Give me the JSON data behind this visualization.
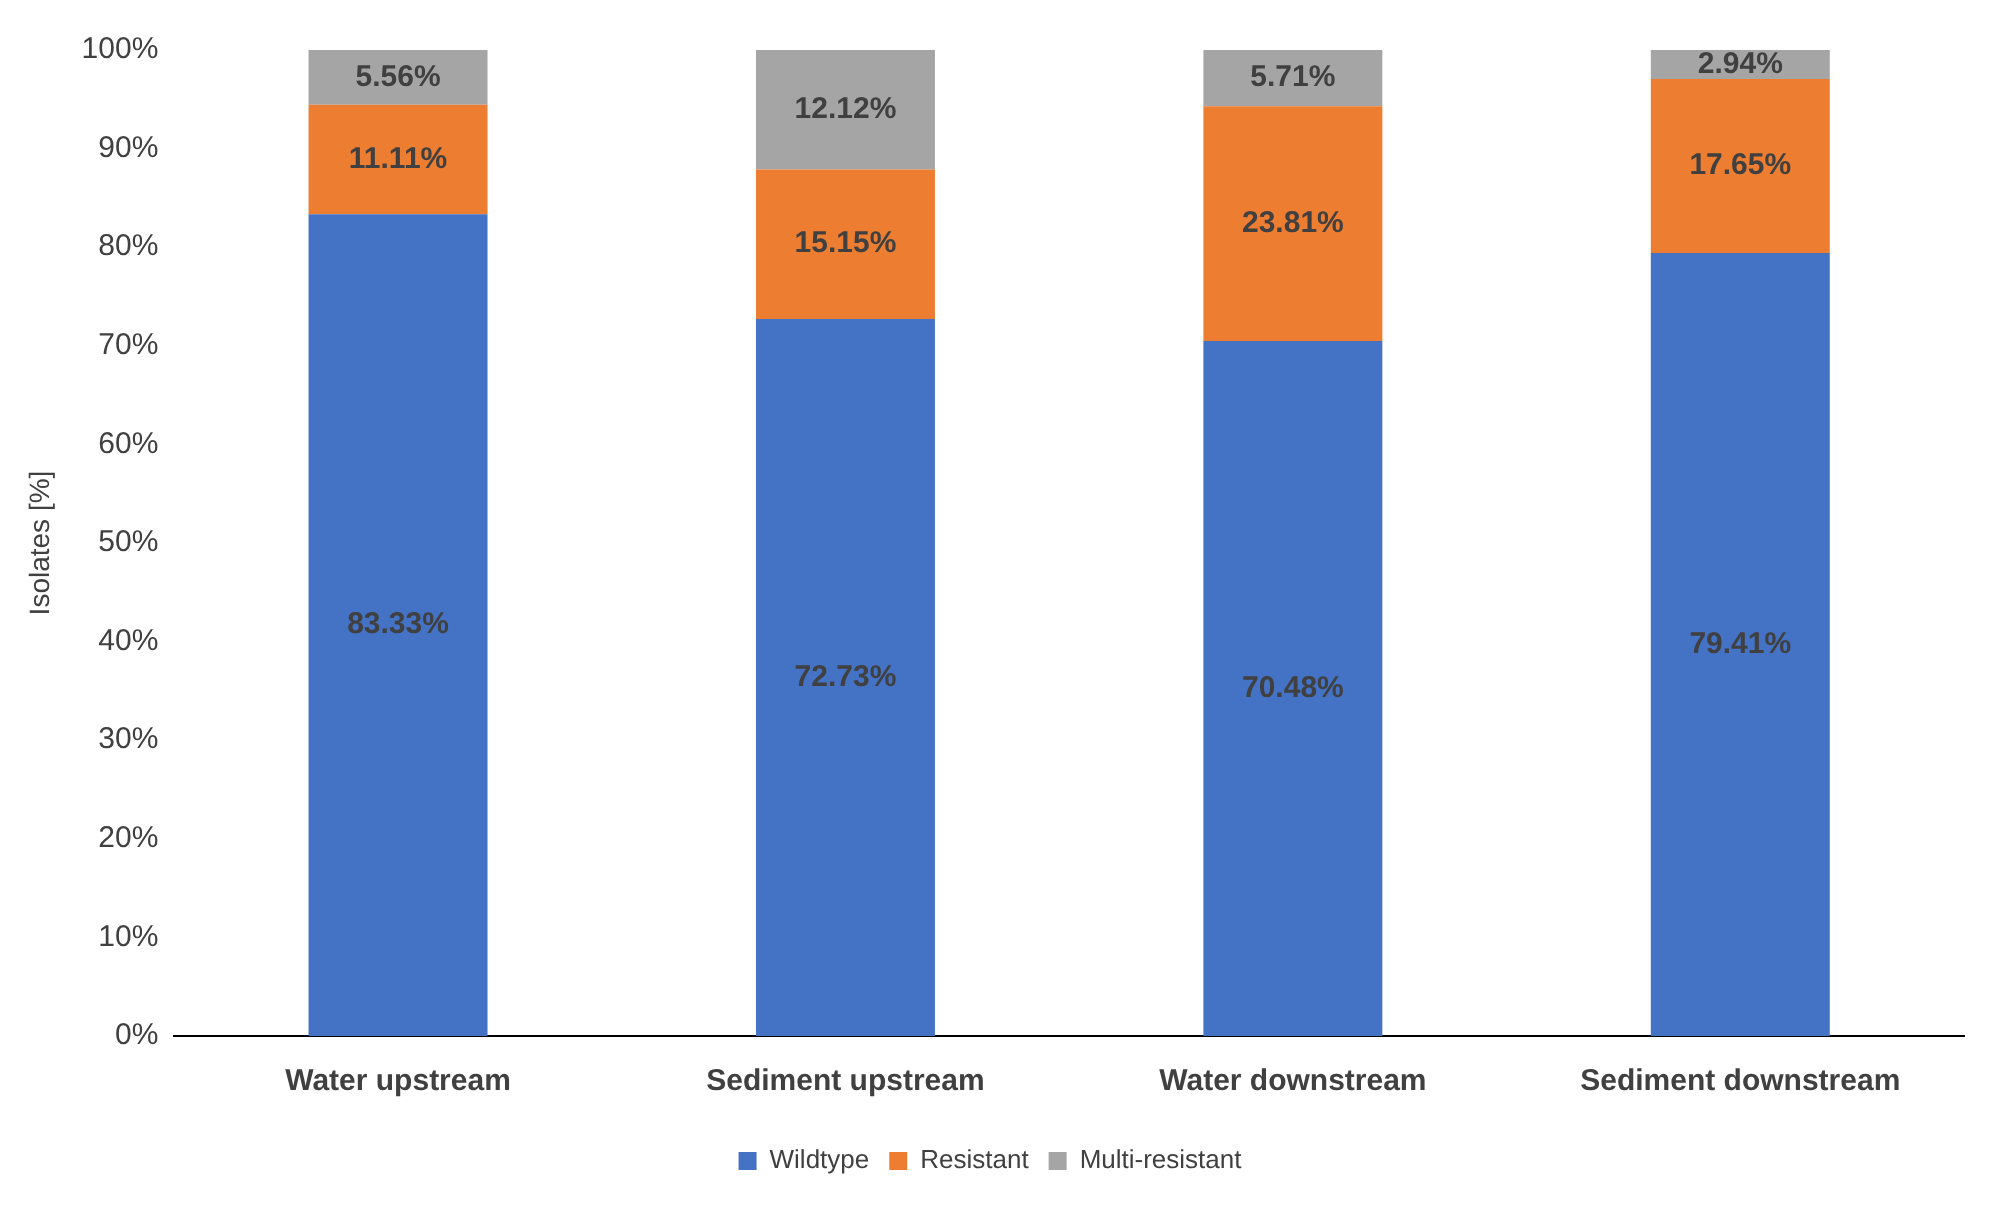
{
  "chart_data": {
    "type": "bar",
    "stacked": true,
    "ylabel": "Isolates [%]",
    "categories": [
      "Water upstream",
      "Sediment upstream",
      "Water downstream",
      "Sediment downstream"
    ],
    "series": [
      {
        "name": "Wildtype",
        "color": "#4472c4",
        "values": [
          83.33,
          72.73,
          70.48,
          79.41
        ],
        "value_labels": [
          "83.33%",
          "72.73%",
          "70.48%",
          "79.41%"
        ]
      },
      {
        "name": "Resistant",
        "color": "#ed7d31",
        "values": [
          11.11,
          15.15,
          23.81,
          17.65
        ],
        "value_labels": [
          "11.11%",
          "15.15%",
          "23.81%",
          "17.65%"
        ]
      },
      {
        "name": "Multi-resistant",
        "color": "#a5a5a5",
        "values": [
          5.56,
          12.12,
          5.71,
          2.94
        ],
        "value_labels": [
          "5.56%",
          "12.12%",
          "5.71%",
          "2.94%"
        ]
      }
    ],
    "ylim": [
      0,
      100
    ],
    "yticks": [
      {
        "value": 0,
        "label": "0%"
      },
      {
        "value": 10,
        "label": "10%"
      },
      {
        "value": 20,
        "label": "20%"
      },
      {
        "value": 30,
        "label": "30%"
      },
      {
        "value": 40,
        "label": "40%"
      },
      {
        "value": 50,
        "label": "50%"
      },
      {
        "value": 60,
        "label": "60%"
      },
      {
        "value": 70,
        "label": "70%"
      },
      {
        "value": 80,
        "label": "80%"
      },
      {
        "value": 90,
        "label": "90%"
      },
      {
        "value": 100,
        "label": "100%"
      }
    ],
    "grid": false,
    "legend": "bottom"
  }
}
